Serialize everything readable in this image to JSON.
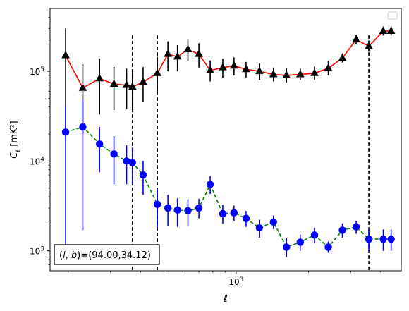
{
  "chart_data": {
    "type": "scatter",
    "title": "",
    "xlabel": "ℓ",
    "ylabel": "C_ℓ  [mK²]",
    "x_scale": "log",
    "y_scale": "log",
    "xlim": [
      168,
      4870
    ],
    "ylim": [
      600,
      500000
    ],
    "x_tick_labels": [
      {
        "value": 1000,
        "base": "10",
        "exp": "3"
      }
    ],
    "y_tick_labels": [
      {
        "value": 1000,
        "base": "10",
        "exp": "3"
      },
      {
        "value": 10000,
        "base": "10",
        "exp": "4"
      },
      {
        "value": 100000,
        "base": "10",
        "exp": "5"
      }
    ],
    "grid": false,
    "legend": "upper-right (empty)",
    "annotation": "(l, b)=(94.00,34.12)",
    "vlines": [
      370,
      470,
      3570
    ],
    "series": [
      {
        "color": "#000000",
        "line_color": "#ff0000",
        "marker": "triangle",
        "linestyle": "solid",
        "x": [
          195,
          230,
          270,
          310,
          350,
          370,
          410,
          470,
          520,
          570,
          630,
          700,
          780,
          880,
          980,
          1100,
          1250,
          1430,
          1620,
          1850,
          2120,
          2420,
          2770,
          3160,
          3570,
          4100,
          4420
        ],
        "y": [
          150000,
          65000,
          83000,
          72000,
          70000,
          67000,
          76000,
          95000,
          155000,
          145000,
          175000,
          155000,
          102000,
          110000,
          115000,
          105000,
          100000,
          92000,
          90000,
          92000,
          95000,
          108000,
          140000,
          225000,
          190000,
          280000,
          280000
        ],
        "yerr_low": [
          130000,
          45000,
          50000,
          35000,
          32000,
          30000,
          30000,
          40000,
          55000,
          45000,
          45000,
          45000,
          25000,
          25000,
          25000,
          20000,
          20000,
          15000,
          15000,
          12000,
          15000,
          18000,
          15000,
          25000,
          25000,
          30000,
          30000
        ],
        "yerr_high": [
          150000,
          55000,
          55000,
          40000,
          37000,
          35000,
          35000,
          50000,
          60000,
          50000,
          50000,
          50000,
          30000,
          28000,
          28000,
          22000,
          22000,
          18000,
          18000,
          15000,
          18000,
          22000,
          18000,
          30000,
          30000,
          35000,
          35000
        ]
      },
      {
        "color": "#0000ff",
        "line_color": "#008000",
        "marker": "circle",
        "linestyle": "dashed",
        "x": [
          195,
          230,
          270,
          310,
          350,
          370,
          410,
          470,
          520,
          570,
          630,
          700,
          780,
          880,
          980,
          1100,
          1250,
          1430,
          1620,
          1850,
          2120,
          2420,
          2770,
          3160,
          3570,
          4100,
          4420
        ],
        "y": [
          21000,
          24000,
          15500,
          12000,
          10000,
          9600,
          7000,
          3300,
          3000,
          2850,
          2800,
          3000,
          5500,
          2600,
          2650,
          2300,
          1800,
          2100,
          1100,
          1250,
          1500,
          1100,
          1700,
          1850,
          1350,
          1350,
          1350
        ],
        "yerr_low": [
          20000,
          22300,
          8000,
          6500,
          4500,
          4200,
          2800,
          1500,
          1100,
          1000,
          900,
          700,
          1200,
          600,
          500,
          450,
          400,
          350,
          250,
          250,
          280,
          150,
          300,
          300,
          350,
          350,
          350
        ],
        "yerr_high": [
          21000,
          24000,
          8500,
          7000,
          5000,
          4500,
          3000,
          1600,
          1200,
          1000,
          950,
          800,
          1300,
          650,
          550,
          480,
          420,
          380,
          280,
          270,
          300,
          170,
          320,
          320,
          380,
          380,
          380
        ]
      }
    ]
  }
}
